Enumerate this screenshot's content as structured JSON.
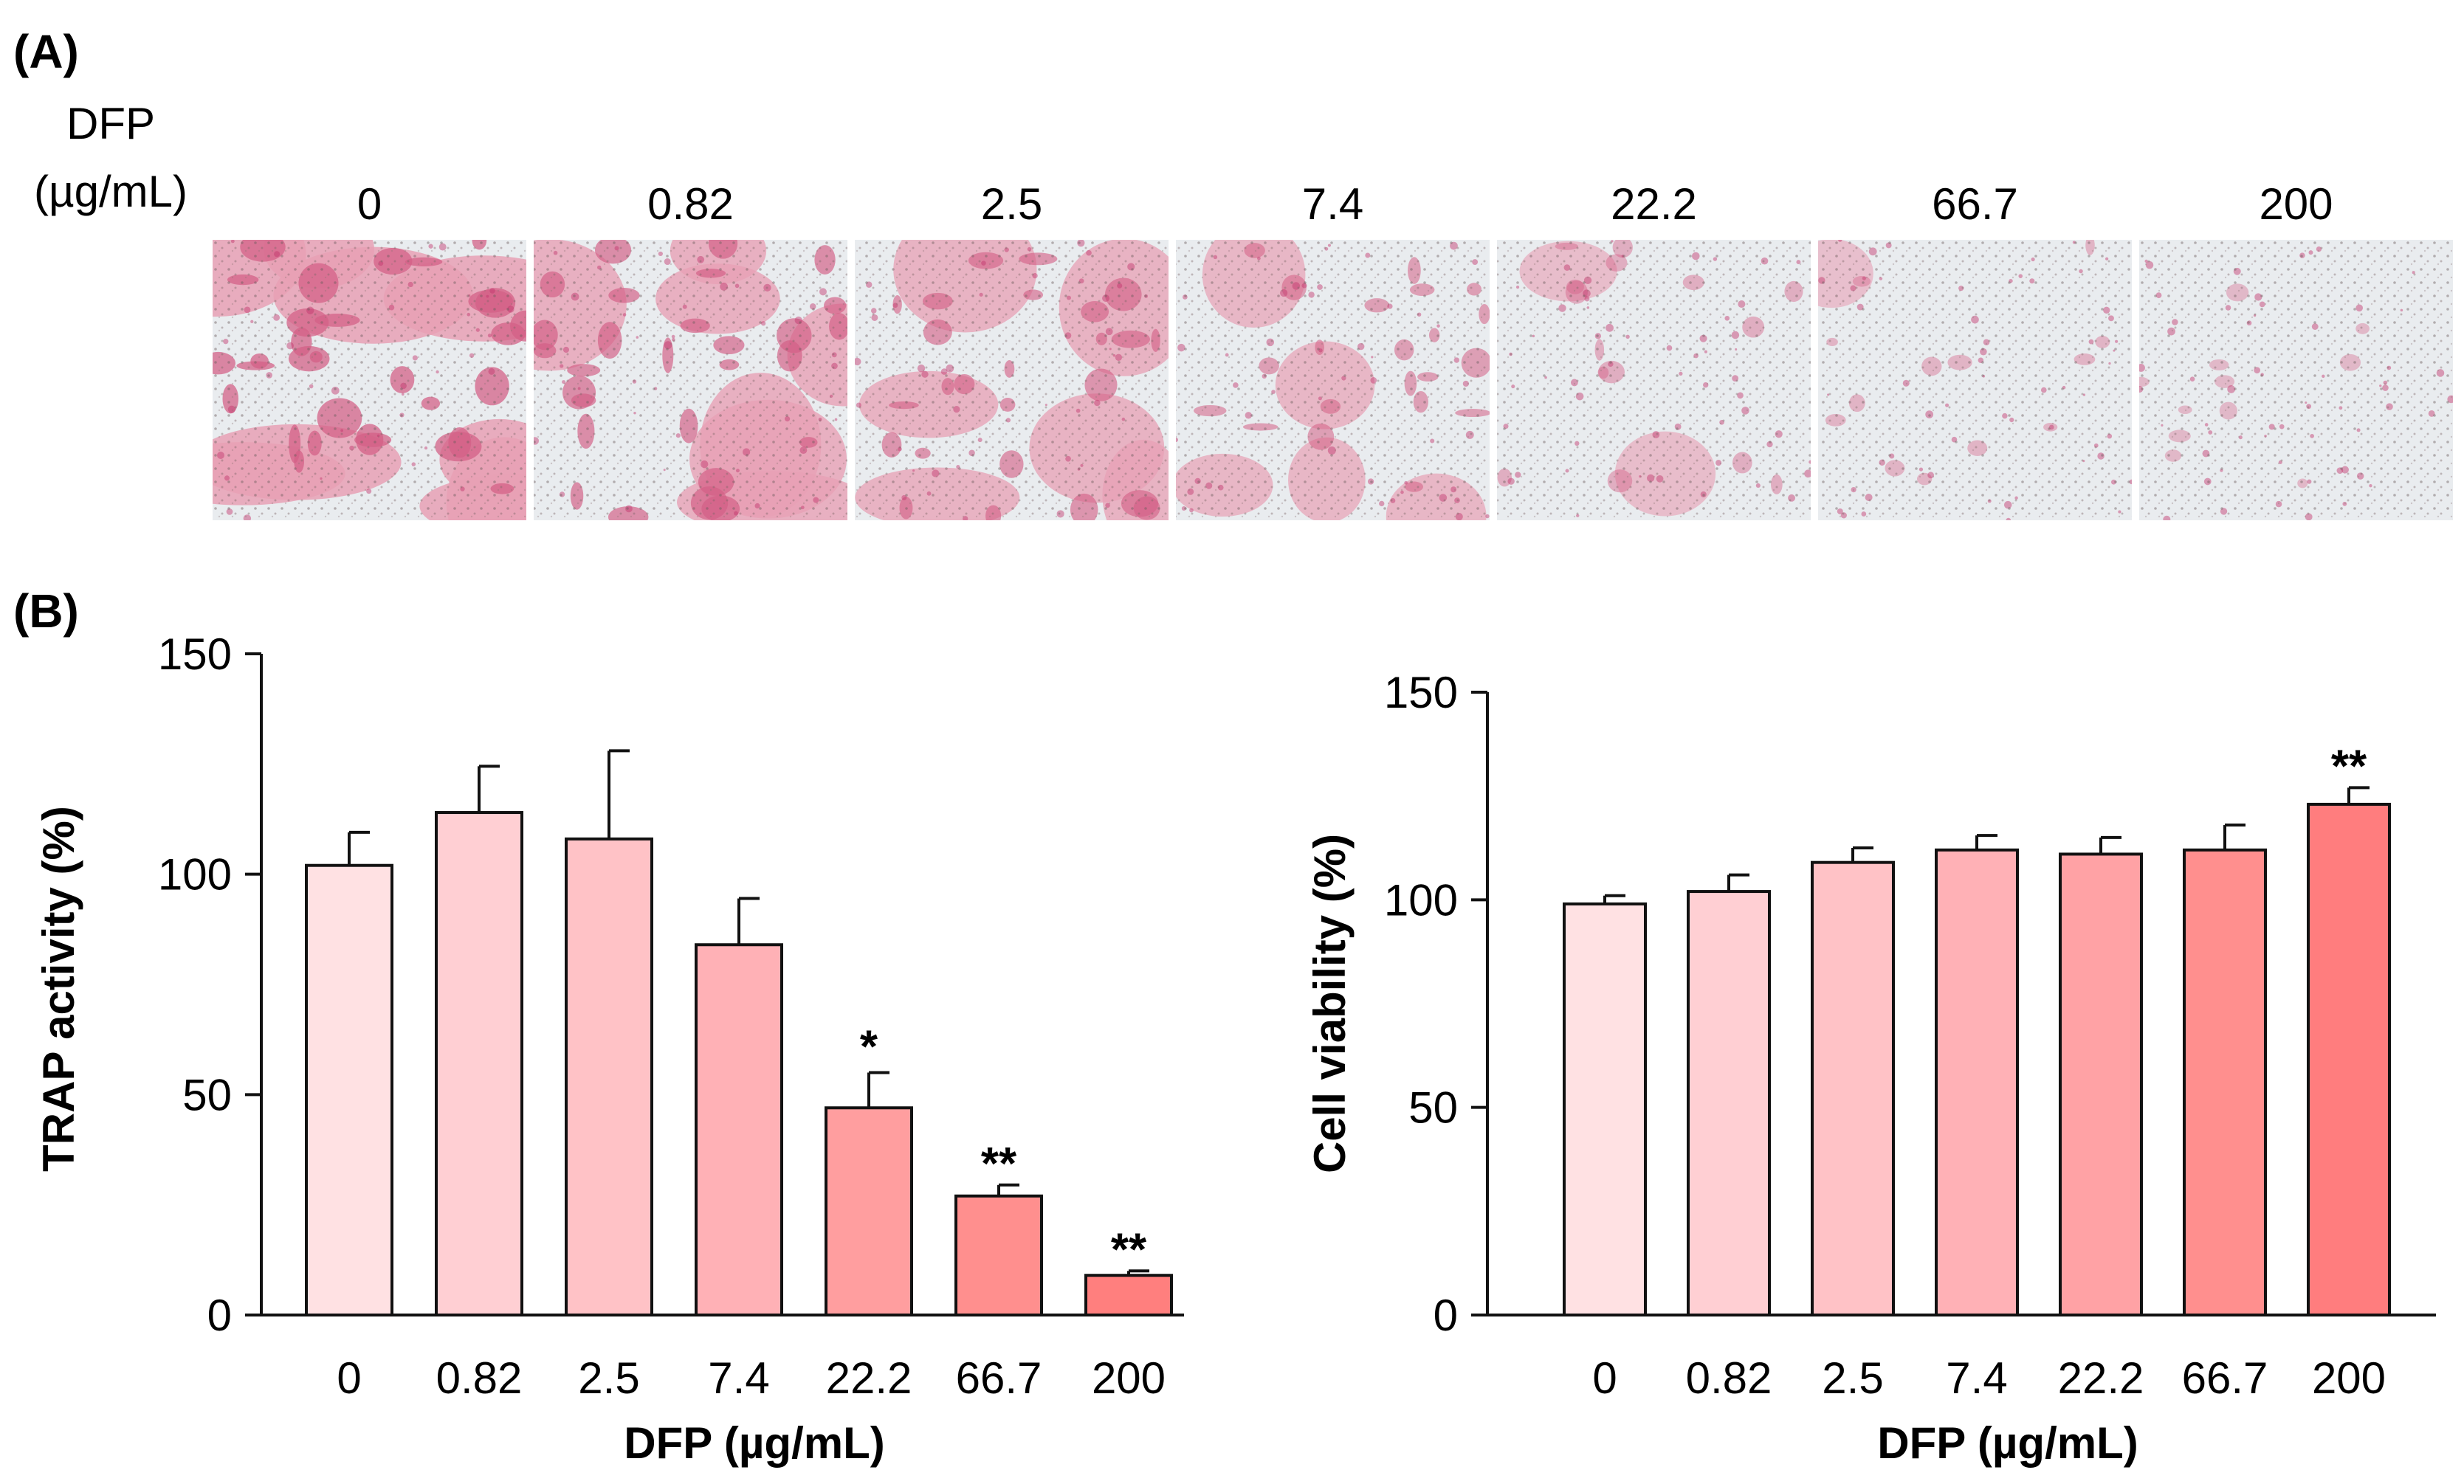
{
  "panel_a": {
    "label": "(A)",
    "dose_label_line1": "DFP",
    "dose_label_line2": "(µg/mL)",
    "doses": [
      "0",
      "0.82",
      "2.5",
      "7.4",
      "22.2",
      "66.7",
      "200"
    ],
    "staining_density": [
      0.85,
      0.72,
      0.6,
      0.45,
      0.2,
      0.1,
      0.04
    ]
  },
  "panel_b": {
    "label": "(B)"
  },
  "chart_data": [
    {
      "type": "bar",
      "categories": [
        "0",
        "0.82",
        "2.5",
        "7.4",
        "22.2",
        "66.7",
        "200"
      ],
      "values": [
        102,
        114,
        108,
        84,
        47,
        27,
        9
      ],
      "errors": [
        7.5,
        10.5,
        20,
        10.5,
        8,
        2.5,
        1
      ],
      "significance": [
        "",
        "",
        "",
        "",
        "*",
        "**",
        "**"
      ],
      "title": "",
      "xlabel": "DFP (µg/mL)",
      "ylabel": "TRAP activity (%)",
      "ylim": [
        0,
        150
      ],
      "yticks": [
        0,
        50,
        100,
        150
      ],
      "colors": [
        "#ffe1e3",
        "#ffcfd3",
        "#ffc2c6",
        "#ffb1b6",
        "#ff9e9f",
        "#ff8f8e",
        "#ff7f7e"
      ]
    },
    {
      "type": "bar",
      "categories": [
        "0",
        "0.82",
        "2.5",
        "7.4",
        "22.2",
        "66.7",
        "200"
      ],
      "values": [
        99,
        102,
        109,
        112,
        111,
        112,
        123
      ],
      "errors": [
        2,
        4,
        3.5,
        3.5,
        4,
        6,
        4
      ],
      "significance": [
        "",
        "",
        "",
        "",
        "",
        "",
        "**"
      ],
      "title": "",
      "xlabel": "DFP (µg/mL)",
      "ylabel": "Cell viability (%)",
      "ylim": [
        0,
        150
      ],
      "yticks": [
        0,
        50,
        100,
        150
      ],
      "colors": [
        "#ffe1e3",
        "#ffcfd3",
        "#ffc2c6",
        "#ffb1b6",
        "#ffa2a5",
        "#ff8f8e",
        "#ff7d7e"
      ]
    }
  ]
}
